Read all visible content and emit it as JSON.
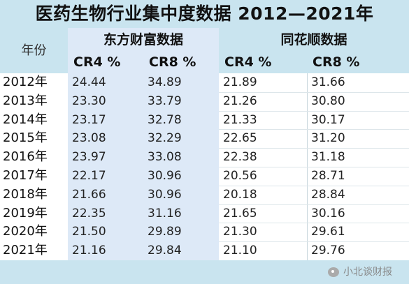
{
  "title": "医药生物行业集中度数据 2012—2021年",
  "headers": {
    "year": "年份",
    "group1": "东方财富数据",
    "group2": "同花顺数据",
    "cr4": "CR4 %",
    "cr8": "CR8 %"
  },
  "rows": [
    {
      "year": "2012年",
      "df_cr4": "24.44",
      "df_cr8": "34.89",
      "ths_cr4": "21.89",
      "ths_cr8": "31.66"
    },
    {
      "year": "2013年",
      "df_cr4": "23.30",
      "df_cr8": "33.79",
      "ths_cr4": "21.26",
      "ths_cr8": "30.80"
    },
    {
      "year": "2014年",
      "df_cr4": "23.17",
      "df_cr8": "32.78",
      "ths_cr4": "21.33",
      "ths_cr8": "30.17"
    },
    {
      "year": "2015年",
      "df_cr4": "23.08",
      "df_cr8": "32.29",
      "ths_cr4": "22.65",
      "ths_cr8": "31.20"
    },
    {
      "year": "2016年",
      "df_cr4": "23.97",
      "df_cr8": "33.08",
      "ths_cr4": "22.38",
      "ths_cr8": "31.18"
    },
    {
      "year": "2017年",
      "df_cr4": "22.17",
      "df_cr8": "30.96",
      "ths_cr4": "20.56",
      "ths_cr8": "28.71"
    },
    {
      "year": "2018年",
      "df_cr4": "21.66",
      "df_cr8": "30.96",
      "ths_cr4": "20.18",
      "ths_cr8": "28.84"
    },
    {
      "year": "2019年",
      "df_cr4": "22.35",
      "df_cr8": "31.16",
      "ths_cr4": "21.65",
      "ths_cr8": "30.16"
    },
    {
      "year": "2020年",
      "df_cr4": "21.50",
      "df_cr8": "29.89",
      "ths_cr4": "21.30",
      "ths_cr8": "29.61"
    },
    {
      "year": "2021年",
      "df_cr4": "21.16",
      "df_cr8": "29.84",
      "ths_cr4": "21.10",
      "ths_cr8": "29.76"
    }
  ],
  "watermark": "小北谈财报"
}
